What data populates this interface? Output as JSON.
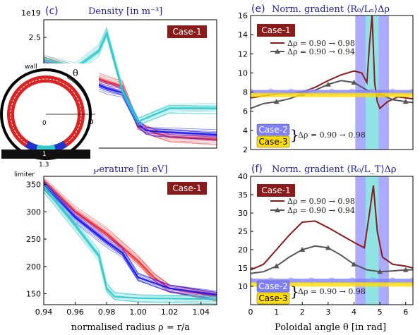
{
  "chart_data": [
    {
      "id": "density",
      "type": "line",
      "title": "Density [in m⁻³]",
      "panel_label": "(c)",
      "case_label": "Case-1",
      "exponent_label": "1e19",
      "xlim": [
        0.94,
        1.05
      ],
      "ylim": [
        0,
        2.9
      ],
      "yticks": [
        "2.5"
      ],
      "ytick_values": [
        2.5
      ],
      "series": [
        {
          "color": "#ff2a2a",
          "x": [
            0.94,
            0.96,
            0.98,
            0.99,
            1.0,
            1.01,
            1.02,
            1.05
          ],
          "y": [
            2.0,
            1.75,
            1.5,
            1.4,
            0.5,
            0.35,
            0.25,
            0.2
          ]
        },
        {
          "color": "#1a1aff",
          "x": [
            0.94,
            0.96,
            0.98,
            0.99,
            1.0,
            1.005,
            1.01,
            1.05
          ],
          "y": [
            1.9,
            1.65,
            1.35,
            1.25,
            0.55,
            0.4,
            0.38,
            0.3
          ]
        },
        {
          "color": "#33cccc",
          "x": [
            0.94,
            0.96,
            0.975,
            0.98,
            0.99,
            1.0,
            1.02,
            1.05
          ],
          "y": [
            2.0,
            1.8,
            2.2,
            2.6,
            1.3,
            0.6,
            0.9,
            0.9
          ]
        }
      ]
    },
    {
      "id": "temperature",
      "type": "line",
      "title": "perature [in eV]",
      "case_label": "Case-1",
      "xlabel": "normalised radius ρ = r/a",
      "xlim": [
        0.94,
        1.05
      ],
      "ylim": [
        130,
        365
      ],
      "xticks": [
        "0.94",
        "0.96",
        "0.98",
        "1.00",
        "1.02",
        "1.04"
      ],
      "xtick_values": [
        0.94,
        0.96,
        0.98,
        1.0,
        1.02,
        1.04
      ],
      "yticks": [
        "150",
        "200",
        "250",
        "300",
        "350"
      ],
      "ytick_values": [
        150,
        200,
        250,
        300,
        350
      ],
      "series": [
        {
          "color": "#ff2a2a",
          "x": [
            0.94,
            0.96,
            0.98,
            1.0,
            1.01,
            1.02,
            1.05
          ],
          "y": [
            355,
            300,
            260,
            210,
            180,
            160,
            145
          ]
        },
        {
          "color": "#1a1aff",
          "x": [
            0.94,
            0.96,
            0.98,
            0.99,
            1.0,
            1.02,
            1.05
          ],
          "y": [
            350,
            290,
            245,
            225,
            180,
            160,
            148
          ]
        },
        {
          "color": "#33cccc",
          "x": [
            0.94,
            0.96,
            0.975,
            0.98,
            0.985,
            1.0,
            1.05
          ],
          "y": [
            345,
            275,
            220,
            160,
            145,
            142,
            140
          ]
        }
      ]
    },
    {
      "id": "grad-n",
      "type": "line",
      "title": "Norm. gradient ⟨R₀/Lₙ⟩Δρ",
      "panel_label": "(e)",
      "case_label": "Case-1",
      "xlim": [
        0,
        6.28
      ],
      "ylim": [
        2,
        16
      ],
      "yticks": [
        "2",
        "4",
        "6",
        "8",
        "10",
        "12",
        "14",
        "16"
      ],
      "ytick_values": [
        2,
        4,
        6,
        8,
        10,
        12,
        14,
        16
      ],
      "legend": [
        {
          "label": "Δρ = 0.90 → 0.98",
          "color": "#8b1a1a"
        },
        {
          "label": "Δρ = 0.90 → 0.94",
          "color": "#555555"
        }
      ],
      "bottom_cases": [
        "Case-2",
        "Case-3"
      ],
      "bottom_label": "Δρ = 0.90 → 0.98",
      "shaded_regions": [
        {
          "x0": 4.05,
          "x1": 4.45,
          "color": "#6666ff"
        },
        {
          "x0": 4.45,
          "x1": 4.95,
          "color": "#33cccc"
        },
        {
          "x0": 4.95,
          "x1": 5.35,
          "color": "#6666ff"
        }
      ],
      "series": [
        {
          "name": "case1-098",
          "color": "#8b1a1a",
          "x": [
            0,
            0.5,
            1,
            1.5,
            2,
            2.5,
            3,
            3.5,
            4,
            4.3,
            4.5,
            4.6,
            4.7,
            4.8,
            4.9,
            5.0,
            5.3,
            5.7,
            6.28
          ],
          "y": [
            7.4,
            7.6,
            7.8,
            7.9,
            8.0,
            8.5,
            9.2,
            9.8,
            10.2,
            10.0,
            9.0,
            13.0,
            16.0,
            9.0,
            7.0,
            6.3,
            7.0,
            7.5,
            7.3
          ]
        },
        {
          "name": "case1-094",
          "color": "#555555",
          "x": [
            0,
            0.5,
            1,
            1.5,
            2,
            2.5,
            3,
            3.5,
            4,
            4.5,
            5,
            5.5,
            6,
            6.28
          ],
          "y": [
            6.3,
            6.8,
            7.0,
            7.3,
            7.8,
            8.2,
            8.8,
            9.2,
            9.0,
            8.2,
            7.8,
            7.2,
            7.0,
            6.9
          ]
        },
        {
          "name": "case2",
          "color": "#8080ff",
          "x": [
            0,
            6.28
          ],
          "y": [
            8.0,
            8.0
          ]
        },
        {
          "name": "case3",
          "color": "#ffdd00",
          "x": [
            0,
            6.28
          ],
          "y": [
            7.7,
            7.7
          ]
        }
      ]
    },
    {
      "id": "grad-t",
      "type": "line",
      "title": "Norm. gradient ⟨R₀/L_T⟩Δρ",
      "panel_label": "(f)",
      "case_label": "Case-1",
      "xlabel": "Poloidal angle θ  [in rad]",
      "xlim": [
        0,
        6.28
      ],
      "ylim": [
        5,
        40
      ],
      "xticks": [
        "0",
        "1",
        "2",
        "3",
        "4",
        "5",
        "6"
      ],
      "xtick_values": [
        0,
        1,
        2,
        3,
        4,
        5,
        6
      ],
      "yticks": [
        "10",
        "15",
        "20",
        "25",
        "30",
        "35",
        "40"
      ],
      "ytick_values": [
        10,
        15,
        20,
        25,
        30,
        35,
        40
      ],
      "legend": [
        {
          "label": "Δρ = 0.90 → 0.98",
          "color": "#8b1a1a"
        },
        {
          "label": "Δρ = 0.90 → 0.94",
          "color": "#555555"
        }
      ],
      "bottom_cases": [
        "Case-2",
        "Case-3"
      ],
      "bottom_label": "Δρ = 0.90 → 0.98",
      "shaded_regions": [
        {
          "x0": 4.05,
          "x1": 4.45,
          "color": "#6666ff"
        },
        {
          "x0": 4.45,
          "x1": 4.95,
          "color": "#33cccc"
        },
        {
          "x0": 4.95,
          "x1": 5.35,
          "color": "#6666ff"
        }
      ],
      "series": [
        {
          "name": "case1-098",
          "color": "#8b1a1a",
          "x": [
            0,
            0.5,
            1,
            1.5,
            2,
            2.5,
            3,
            3.5,
            4,
            4.4,
            4.6,
            4.75,
            4.9,
            5.1,
            5.5,
            6,
            6.28
          ],
          "y": [
            14.5,
            16,
            20,
            24,
            27.5,
            27.8,
            26,
            24,
            22,
            20.5,
            30,
            37.5,
            25,
            18,
            16,
            15.5,
            15
          ]
        },
        {
          "name": "case1-094",
          "color": "#555555",
          "x": [
            0,
            0.5,
            1,
            1.5,
            2,
            2.5,
            3,
            3.5,
            4,
            4.5,
            5,
            5.5,
            6,
            6.28
          ],
          "y": [
            13.5,
            14,
            15.5,
            18,
            20,
            21,
            20.5,
            18.5,
            16,
            14.5,
            14,
            14.2,
            14.5,
            14.5
          ]
        },
        {
          "name": "case2",
          "color": "#8080ff",
          "x": [
            0,
            6.28
          ],
          "y": [
            11.5,
            11.5
          ]
        },
        {
          "name": "case3",
          "color": "#ffdd00",
          "x": [
            0,
            6.28
          ],
          "y": [
            10.5,
            10.5
          ]
        }
      ]
    }
  ],
  "inset": {
    "wall_label": "wall",
    "limiter_label": "limiter",
    "theta_label": "θ",
    "rho_label": "ρ",
    "zero_label": "0",
    "one_label": "1",
    "one_three_label": "1.3"
  }
}
